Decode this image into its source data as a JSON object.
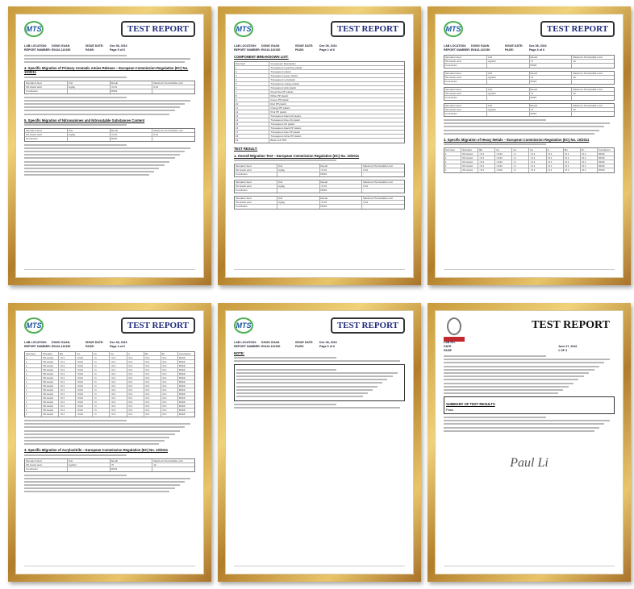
{
  "common": {
    "title": "TEST REPORT",
    "logo": "MTS",
    "lab_location_label": "LAB LOCATION:",
    "lab_location": "DONG GUAN",
    "report_number_label": "REPORT NUMBER:",
    "report_number": "E0416-110150",
    "issue_date_label": "ISSUE DATE:",
    "issue_date": "Dec 08, 2016",
    "page_label": "PAGE:"
  },
  "docs": [
    {
      "page": "Page 5 of 6",
      "headings": [
        "4. Specific Migration of Primary Aromatic Amine Release – European Commission Regulation (EC) No. 10/2011",
        "5. Specific Migration of Nitrosamines and Nitrosatable Substances Content"
      ],
      "table_head": [
        "Simulant Used",
        "Unit",
        "Result",
        "Maximum Permissible Limit"
      ],
      "table_rows": [
        [
          "3% Acetic acid",
          "mg/kg",
          "<0.01",
          "0.01"
        ],
        [
          "Conclusion",
          "",
          "PASS",
          "-"
        ]
      ]
    },
    {
      "page": "Page 2 of 6",
      "headings": [
        "COMPONENT BREAKDOWN LIST:",
        "TEST RESULT:",
        "1. Overall Migration Test – European Commission Regulation (EC) No. 10/2011"
      ],
      "table_head": [
        "Test Item",
        "Component Description"
      ],
      "table_rows": [
        [
          "1",
          "Transparent royal blue plastic"
        ],
        [
          "2",
          "Transparent plastic"
        ],
        [
          "3",
          "Transparent green plastic"
        ],
        [
          "4",
          "Transparent red plastic"
        ],
        [
          "5",
          "Transparent orange plastic"
        ],
        [
          "6",
          "Transparent pink plastic"
        ],
        [
          "7",
          "Royal blue PP plastic"
        ],
        [
          "8",
          "White PP plastic"
        ],
        [
          "9",
          "Green PP plastic"
        ],
        [
          "10",
          "Red PP plastic"
        ],
        [
          "11",
          "Orange PP plastic"
        ],
        [
          "12",
          "Pink PP plastic"
        ],
        [
          "13",
          "Transparent black AS plastic"
        ],
        [
          "14",
          "Transparent blue AS plastic"
        ],
        [
          "15",
          "Transparent AS plastic"
        ],
        [
          "16",
          "Transparent black PP plastic"
        ],
        [
          "17",
          "Transparent blue PP plastic"
        ],
        [
          "18",
          "Transparent white PP plastic"
        ],
        [
          "19",
          "Black soft TPR"
        ]
      ]
    },
    {
      "page": "Page 3 of 6",
      "headings": [
        "3. Specific Migration of Heavy Metals – European Commission Regulation (EC) No. 10/2011"
      ],
      "table_head": [
        "Simulant Used",
        "Unit",
        "Result",
        "Maximum Permissible Limit"
      ],
      "table_rows": [
        [
          "3% Acetic acid",
          "mg/dm²",
          "<5",
          "10"
        ],
        [
          "Conclusion",
          "",
          "PASS",
          "-"
        ]
      ]
    },
    {
      "page": "Page 4 of 6",
      "headings": [
        "3. Specific Migration of Acrylonitrile – European Commission Regulation (EC) No. 10/2011"
      ],
      "table_head": [
        "Test Item",
        "Simulant",
        "Ba",
        "Co",
        "Cu",
        "Fe",
        "Li",
        "Mn",
        "Zn",
        "Conclusion"
      ],
      "table_rows": [
        [
          "1",
          "3% Acetic acid",
          "<0.1",
          "<0.02",
          "<1",
          "<0.1",
          "<0.1",
          "<0.1",
          "<0.1",
          "PASS"
        ]
      ]
    },
    {
      "page": "Page 6 of 6",
      "headings": [
        "NOTE:"
      ]
    },
    {
      "bv": true,
      "title": "TEST REPORT",
      "lab_no_label": "LAB NO.",
      "date_label": "DATE",
      "date": "June 27, 2016",
      "page_label": "PAGE",
      "page": "1 OF 3",
      "summary": "SUMMARY OF TEST RESULTS",
      "result": "Pass"
    }
  ]
}
